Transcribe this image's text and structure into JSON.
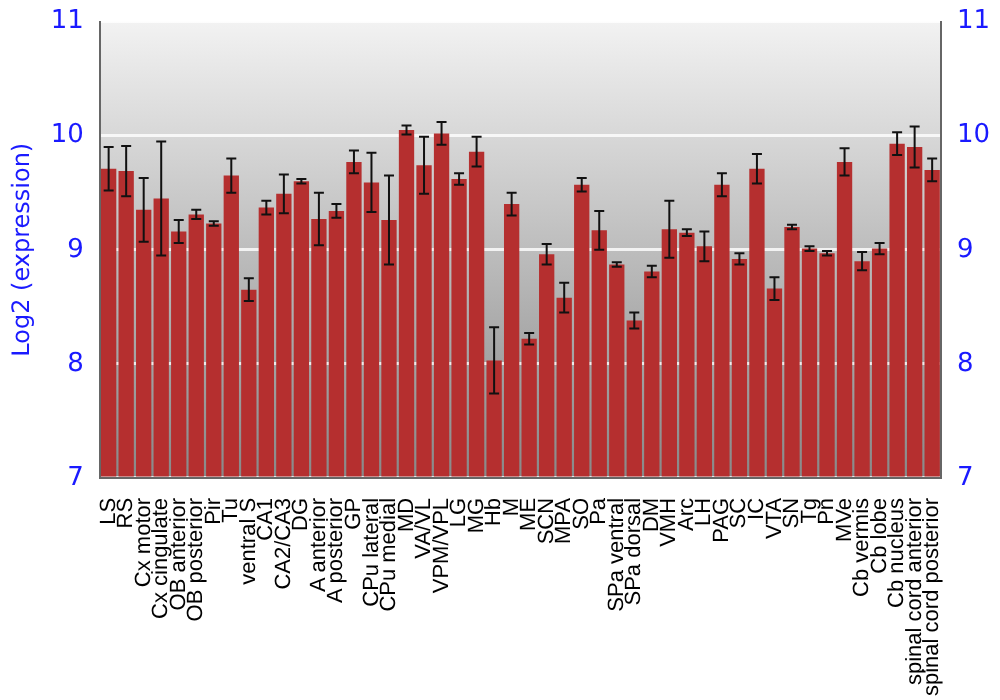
{
  "chart_data": {
    "type": "bar",
    "ylabel": "Log2 (expression)",
    "categories": [
      "LS",
      "RS",
      "Cx motor",
      "Cx cingulate",
      "OB anterior",
      "OB posterior",
      "Pir",
      "Tu",
      "ventral S",
      "CA1",
      "CA2/CA3",
      "DG",
      "A anterior",
      "A posterior",
      "GP",
      "CPu lateral",
      "CPu medial",
      "MD",
      "VA/VL",
      "VPM/VPL",
      "LG",
      "MG",
      "Hb",
      "M",
      "ME",
      "SCN",
      "MPA",
      "SO",
      "Pa",
      "SPa ventral",
      "SPa dorsal",
      "DM",
      "VMH",
      "Arc",
      "LH",
      "PAG",
      "SC",
      "IC",
      "VTA",
      "SN",
      "Tg",
      "Pn",
      "MVe",
      "Cb vermis",
      "Cb lobe",
      "Cb nucleus",
      "spinal cord anterior",
      "spinal cord posterior"
    ],
    "values": [
      9.71,
      9.69,
      9.35,
      9.45,
      9.16,
      9.31,
      9.23,
      9.65,
      8.65,
      9.37,
      9.49,
      9.6,
      9.27,
      9.34,
      9.77,
      9.59,
      9.26,
      10.05,
      9.74,
      10.02,
      9.62,
      9.86,
      8.03,
      9.4,
      8.22,
      8.96,
      8.58,
      9.57,
      9.17,
      8.87,
      8.38,
      8.81,
      9.18,
      9.15,
      9.03,
      9.57,
      8.92,
      9.71,
      8.66,
      9.2,
      9.01,
      8.97,
      9.77,
      8.9,
      9.01,
      9.93,
      9.9,
      9.7
    ],
    "errors": [
      0.19,
      0.22,
      0.28,
      0.5,
      0.1,
      0.04,
      0.02,
      0.15,
      0.1,
      0.06,
      0.17,
      0.02,
      0.23,
      0.06,
      0.1,
      0.26,
      0.39,
      0.04,
      0.25,
      0.1,
      0.05,
      0.13,
      0.29,
      0.1,
      0.05,
      0.09,
      0.13,
      0.06,
      0.17,
      0.02,
      0.07,
      0.05,
      0.25,
      0.03,
      0.13,
      0.1,
      0.05,
      0.13,
      0.1,
      0.02,
      0.02,
      0.02,
      0.12,
      0.08,
      0.05,
      0.1,
      0.18,
      0.1
    ],
    "color": "#b52f2f",
    "ylim": [
      7,
      11
    ],
    "yticks": [
      7,
      8,
      9,
      10,
      11
    ],
    "y2lim": [
      7,
      11
    ],
    "y2ticks": [
      7,
      8,
      9,
      10,
      11
    ],
    "grid": "y",
    "legend": false
  }
}
